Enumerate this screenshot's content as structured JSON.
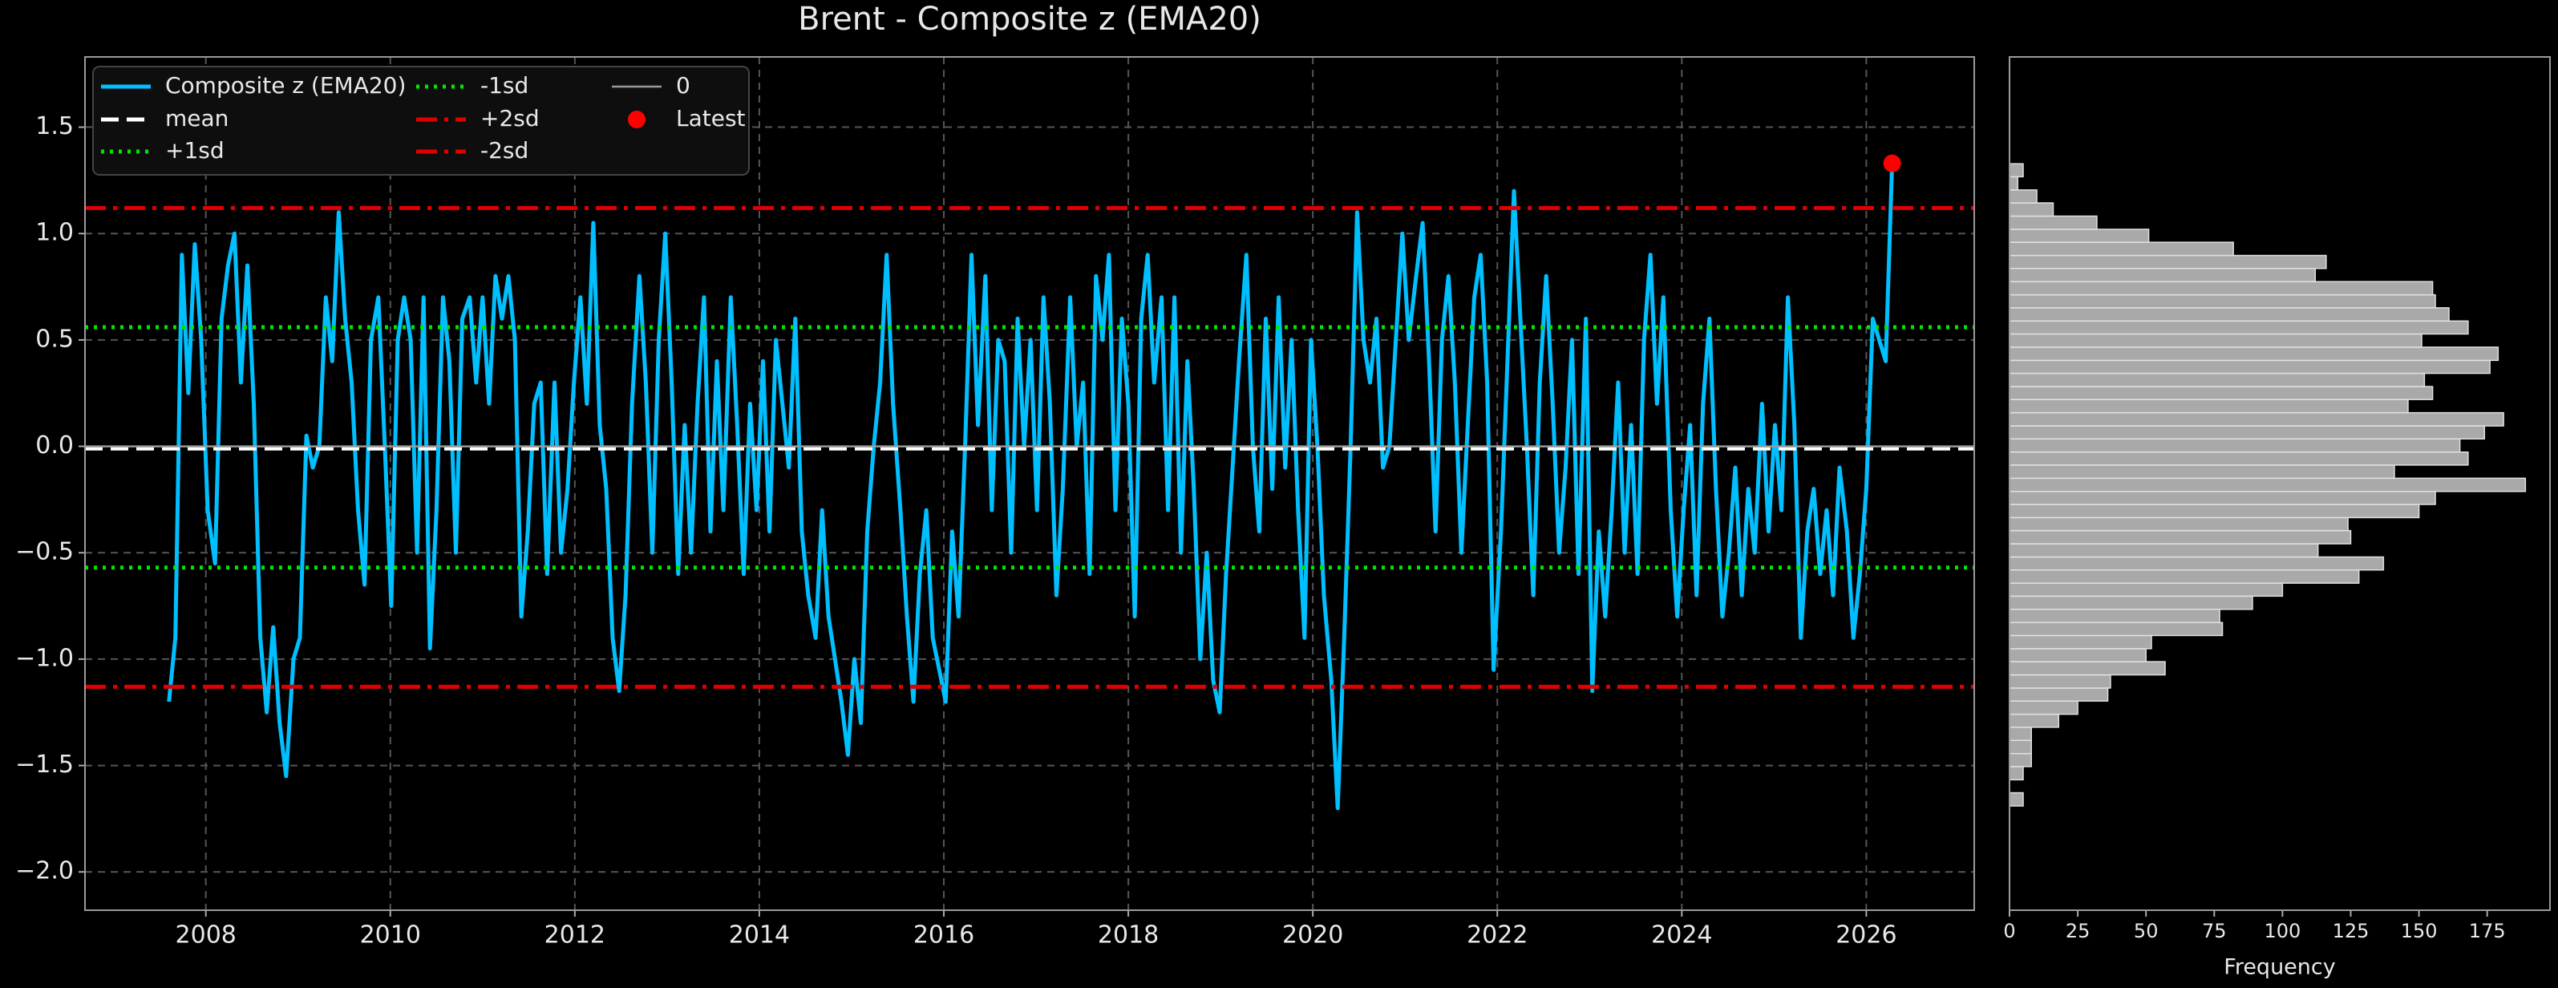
{
  "chart_data": [
    {
      "type": "line",
      "title": "Brent - Composite z (EMA20)",
      "x": [
        2007.6,
        2007.67,
        2007.74,
        2007.81,
        2007.88,
        2007.95,
        2008.02,
        2008.1,
        2008.17,
        2008.24,
        2008.31,
        2008.38,
        2008.45,
        2008.52,
        2008.59,
        2008.66,
        2008.73,
        2008.8,
        2008.87,
        2008.95,
        2009.02,
        2009.09,
        2009.16,
        2009.23,
        2009.3,
        2009.37,
        2009.44,
        2009.51,
        2009.58,
        2009.65,
        2009.72,
        2009.79,
        2009.87,
        2009.94,
        2010.01,
        2010.08,
        2010.15,
        2010.22,
        2010.29,
        2010.36,
        2010.43,
        2010.5,
        2010.57,
        2010.64,
        2010.71,
        2010.78,
        2010.86,
        2010.93,
        2011.0,
        2011.07,
        2011.14,
        2011.21,
        2011.28,
        2011.35,
        2011.42,
        2011.49,
        2011.56,
        2011.63,
        2011.7,
        2011.78,
        2011.85,
        2011.92,
        2011.99,
        2012.06,
        2012.13,
        2012.2,
        2012.27,
        2012.34,
        2012.41,
        2012.48,
        2012.55,
        2012.62,
        2012.7,
        2012.77,
        2012.84,
        2012.91,
        2012.98,
        2013.05,
        2013.12,
        2013.19,
        2013.26,
        2013.33,
        2013.4,
        2013.47,
        2013.54,
        2013.61,
        2013.69,
        2013.76,
        2013.83,
        2013.9,
        2013.97,
        2014.04,
        2014.11,
        2014.18,
        2014.25,
        2014.32,
        2014.39,
        2014.46,
        2014.53,
        2014.61,
        2014.68,
        2014.75,
        2014.82,
        2014.89,
        2014.96,
        2015.03,
        2015.1,
        2015.17,
        2015.24,
        2015.31,
        2015.38,
        2015.45,
        2015.53,
        2015.6,
        2015.67,
        2015.74,
        2015.81,
        2015.88,
        2015.95,
        2016.02,
        2016.09,
        2016.16,
        2016.23,
        2016.3,
        2016.37,
        2016.45,
        2016.52,
        2016.59,
        2016.66,
        2016.73,
        2016.8,
        2016.87,
        2016.94,
        2017.01,
        2017.08,
        2017.15,
        2017.22,
        2017.29,
        2017.37,
        2017.44,
        2017.51,
        2017.58,
        2017.65,
        2017.72,
        2017.79,
        2017.86,
        2017.93,
        2018.0,
        2018.07,
        2018.14,
        2018.21,
        2018.28,
        2018.36,
        2018.43,
        2018.5,
        2018.57,
        2018.64,
        2018.71,
        2018.78,
        2018.85,
        2018.92,
        2018.99,
        2019.06,
        2019.13,
        2019.2,
        2019.28,
        2019.35,
        2019.42,
        2019.49,
        2019.56,
        2019.63,
        2019.7,
        2019.77,
        2019.84,
        2019.91,
        2019.98,
        2020.05,
        2020.12,
        2020.2,
        2020.27,
        2020.34,
        2020.41,
        2020.48,
        2020.55,
        2020.62,
        2020.69,
        2020.76,
        2020.83,
        2020.9,
        2020.97,
        2021.04,
        2021.12,
        2021.19,
        2021.26,
        2021.33,
        2021.4,
        2021.47,
        2021.54,
        2021.61,
        2021.68,
        2021.75,
        2021.82,
        2021.89,
        2021.96,
        2022.04,
        2022.11,
        2022.18,
        2022.25,
        2022.32,
        2022.39,
        2022.46,
        2022.53,
        2022.6,
        2022.67,
        2022.74,
        2022.81,
        2022.88,
        2022.96,
        2023.03,
        2023.1,
        2023.17,
        2023.24,
        2023.31,
        2023.38,
        2023.45,
        2023.52,
        2023.59,
        2023.66,
        2023.73,
        2023.8,
        2023.88,
        2023.95,
        2024.02,
        2024.09,
        2024.16,
        2024.23,
        2024.3,
        2024.37,
        2024.44,
        2024.51,
        2024.58,
        2024.65,
        2024.72,
        2024.79,
        2024.87,
        2024.94,
        2025.01,
        2025.08,
        2025.15,
        2025.22,
        2025.29,
        2025.36,
        2025.43,
        2025.5,
        2025.57,
        2025.64,
        2025.71,
        2025.79,
        2025.86,
        2025.93,
        2026.0,
        2026.07,
        2026.14,
        2026.21,
        2026.28
      ],
      "series": [
        {
          "name": "Composite z (EMA20)",
          "color": "#00bfff",
          "values": [
            -1.2,
            -0.9,
            0.9,
            0.25,
            0.95,
            0.5,
            -0.3,
            -0.55,
            0.6,
            0.85,
            1.0,
            0.3,
            0.85,
            0.2,
            -0.9,
            -1.25,
            -0.85,
            -1.3,
            -1.55,
            -1.0,
            -0.9,
            0.05,
            -0.1,
            0.0,
            0.7,
            0.4,
            1.1,
            0.6,
            0.3,
            -0.3,
            -0.65,
            0.5,
            0.7,
            0.0,
            -0.75,
            0.5,
            0.7,
            0.5,
            -0.5,
            0.7,
            -0.95,
            -0.3,
            0.7,
            0.4,
            -0.5,
            0.6,
            0.7,
            0.3,
            0.7,
            0.2,
            0.8,
            0.6,
            0.8,
            0.5,
            -0.8,
            -0.4,
            0.2,
            0.3,
            -0.6,
            0.3,
            -0.5,
            -0.2,
            0.3,
            0.7,
            0.2,
            1.05,
            0.1,
            -0.2,
            -0.9,
            -1.15,
            -0.7,
            0.2,
            0.8,
            0.3,
            -0.5,
            0.5,
            1.0,
            0.3,
            -0.6,
            0.1,
            -0.5,
            0.2,
            0.7,
            -0.4,
            0.4,
            -0.3,
            0.7,
            0.1,
            -0.6,
            0.2,
            -0.3,
            0.4,
            -0.4,
            0.5,
            0.2,
            -0.1,
            0.6,
            -0.4,
            -0.7,
            -0.9,
            -0.3,
            -0.8,
            -1.0,
            -1.2,
            -1.45,
            -1.0,
            -1.3,
            -0.4,
            0.0,
            0.3,
            0.9,
            0.2,
            -0.3,
            -0.8,
            -1.2,
            -0.6,
            -0.3,
            -0.9,
            -1.05,
            -1.2,
            -0.4,
            -0.8,
            0.0,
            0.9,
            0.1,
            0.8,
            -0.3,
            0.5,
            0.4,
            -0.5,
            0.6,
            0.0,
            0.5,
            -0.3,
            0.7,
            0.2,
            -0.7,
            -0.2,
            0.7,
            0.0,
            0.3,
            -0.6,
            0.8,
            0.5,
            0.9,
            -0.3,
            0.6,
            0.2,
            -0.8,
            0.6,
            0.9,
            0.3,
            0.7,
            -0.3,
            0.7,
            -0.5,
            0.4,
            -0.2,
            -1.0,
            -0.5,
            -1.1,
            -1.25,
            -0.6,
            -0.1,
            0.4,
            0.9,
            0.0,
            -0.4,
            0.6,
            -0.2,
            0.7,
            -0.1,
            0.5,
            -0.3,
            -0.9,
            0.5,
            0.0,
            -0.7,
            -1.1,
            -1.7,
            -0.9,
            0.0,
            1.1,
            0.5,
            0.3,
            0.6,
            -0.1,
            0.0,
            0.5,
            1.0,
            0.5,
            0.8,
            1.05,
            0.4,
            -0.4,
            0.5,
            0.8,
            0.3,
            -0.5,
            0.1,
            0.7,
            0.9,
            0.3,
            -1.05,
            -0.4,
            0.4,
            1.2,
            0.6,
            0.0,
            -0.7,
            0.3,
            0.8,
            0.2,
            -0.5,
            -0.1,
            0.5,
            -0.6,
            0.6,
            -1.15,
            -0.4,
            -0.8,
            -0.3,
            0.3,
            -0.5,
            0.1,
            -0.6,
            0.5,
            0.9,
            0.2,
            0.7,
            -0.3,
            -0.8,
            -0.3,
            0.1,
            -0.7,
            0.2,
            0.6,
            -0.2,
            -0.8,
            -0.5,
            -0.1,
            -0.7,
            -0.2,
            -0.5,
            0.2,
            -0.4,
            0.1,
            -0.3,
            0.7,
            0.1,
            -0.9,
            -0.4,
            -0.2,
            -0.6,
            -0.3,
            -0.7,
            -0.1,
            -0.4,
            -0.9,
            -0.6,
            -0.2,
            0.6,
            0.5,
            0.4,
            1.33
          ]
        }
      ],
      "reference_lines": [
        {
          "name": "mean",
          "value": -0.01,
          "color": "#ffffff",
          "style": "dashed"
        },
        {
          "name": "+1sd",
          "value": 0.56,
          "color": "#00e600",
          "style": "dotted"
        },
        {
          "name": "-1sd",
          "value": -0.57,
          "color": "#00e600",
          "style": "dotted"
        },
        {
          "name": "+2sd",
          "value": 1.12,
          "color": "#e00000",
          "style": "dashdot"
        },
        {
          "name": "-2sd",
          "value": -1.13,
          "color": "#e00000",
          "style": "dashdot"
        },
        {
          "name": "0",
          "value": 0,
          "color": "#9a9a9a",
          "style": "solid"
        }
      ],
      "latest": {
        "name": "Latest",
        "x": 2026.28,
        "y": 1.33,
        "color": "#ff0000"
      },
      "xlim": [
        2006.69,
        2027.17
      ],
      "xticks": [
        2008,
        2010,
        2012,
        2014,
        2016,
        2018,
        2020,
        2022,
        2024,
        2026
      ],
      "ylim": [
        -2.18,
        1.83
      ],
      "yticks": [
        {
          "value": -2,
          "label": "−2.0"
        },
        {
          "value": -1.5,
          "label": "−1.5"
        },
        {
          "value": -1,
          "label": "−1.0"
        },
        {
          "value": -0.5,
          "label": "−0.5"
        },
        {
          "value": 0,
          "label": "0.0"
        },
        0.5,
        {
          "value": 1,
          "label": "1.0"
        },
        1.5
      ],
      "grid": true,
      "legend": "upper left"
    },
    {
      "type": "histogram",
      "orientation": "horizontal",
      "xlabel": "Frequency",
      "color": "#a9a9a9",
      "bins": [
        -1.69,
        -1.628,
        -1.567,
        -1.505,
        -1.444,
        -1.382,
        -1.32,
        -1.259,
        -1.197,
        -1.136,
        -1.074,
        -1.012,
        -0.951,
        -0.889,
        -0.828,
        -0.766,
        -0.704,
        -0.643,
        -0.581,
        -0.52,
        -0.458,
        -0.396,
        -0.335,
        -0.273,
        -0.212,
        -0.15,
        -0.088,
        -0.027,
        0.035,
        0.096,
        0.158,
        0.22,
        0.281,
        0.343,
        0.404,
        0.466,
        0.528,
        0.589,
        0.651,
        0.712,
        0.774,
        0.836,
        0.897,
        0.959,
        1.02,
        1.082,
        1.144,
        1.205,
        1.267,
        1.328
      ],
      "values": [
        5,
        0,
        5,
        8,
        8,
        8,
        18,
        25,
        36,
        37,
        57,
        50,
        52,
        78,
        77,
        89,
        100,
        128,
        137,
        113,
        125,
        124,
        150,
        156,
        189,
        141,
        168,
        165,
        174,
        181,
        146,
        155,
        152,
        176,
        179,
        151,
        168,
        161,
        156,
        155,
        112,
        116,
        82,
        51,
        32,
        16,
        10,
        3,
        5
      ],
      "xlim": [
        0,
        198
      ],
      "xticks": [
        0,
        25,
        50,
        75,
        100,
        125,
        150,
        175
      ],
      "ylim": [
        -2.18,
        1.83
      ],
      "grid": false
    }
  ]
}
